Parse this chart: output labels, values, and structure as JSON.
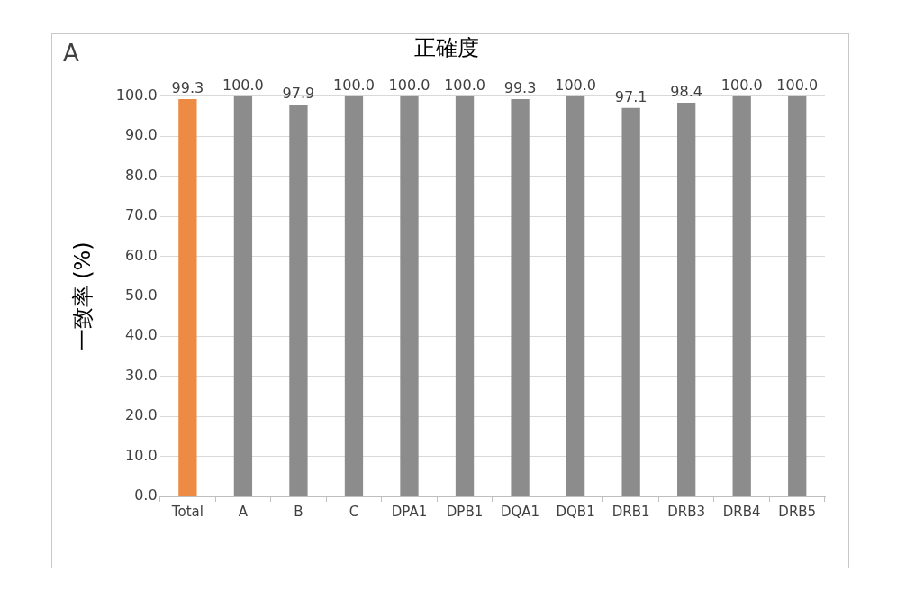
{
  "chart_data": {
    "type": "bar",
    "title": "正確度",
    "ylabel": "一致率 (%)",
    "annotations": [
      "A"
    ],
    "categories": [
      "Total",
      "A",
      "B",
      "C",
      "DPA1",
      "DPB1",
      "DQA1",
      "DQB1",
      "DRB1",
      "DRB3",
      "DRB4",
      "DRB5"
    ],
    "values": [
      99.3,
      100.0,
      97.9,
      100.0,
      100.0,
      100.0,
      99.3,
      100.0,
      97.1,
      98.4,
      100.0,
      100.0
    ],
    "value_labels": [
      "99.3",
      "100.0",
      "97.9",
      "100.0",
      "100.0",
      "100.0",
      "99.3",
      "100.0",
      "97.1",
      "98.4",
      "100.0",
      "100.0"
    ],
    "colors": [
      "#ed8b45",
      "#8c8c8c",
      "#8c8c8c",
      "#8c8c8c",
      "#8c8c8c",
      "#8c8c8c",
      "#8c8c8c",
      "#8c8c8c",
      "#8c8c8c",
      "#8c8c8c",
      "#8c8c8c",
      "#8c8c8c"
    ],
    "ylim": [
      0,
      100
    ],
    "yticks": [
      {
        "value": 0,
        "label": "0.0"
      },
      {
        "value": 10,
        "label": "10.0"
      },
      {
        "value": 20,
        "label": "20.0"
      },
      {
        "value": 30,
        "label": "30.0"
      },
      {
        "value": 40,
        "label": "40.0"
      },
      {
        "value": 50,
        "label": "50.0"
      },
      {
        "value": 60,
        "label": "60.0"
      },
      {
        "value": 70,
        "label": "70.0"
      },
      {
        "value": 80,
        "label": "80.0"
      },
      {
        "value": 90,
        "label": "90.0"
      },
      {
        "value": 100,
        "label": "100.0"
      }
    ],
    "grid": "y",
    "legend": false
  }
}
